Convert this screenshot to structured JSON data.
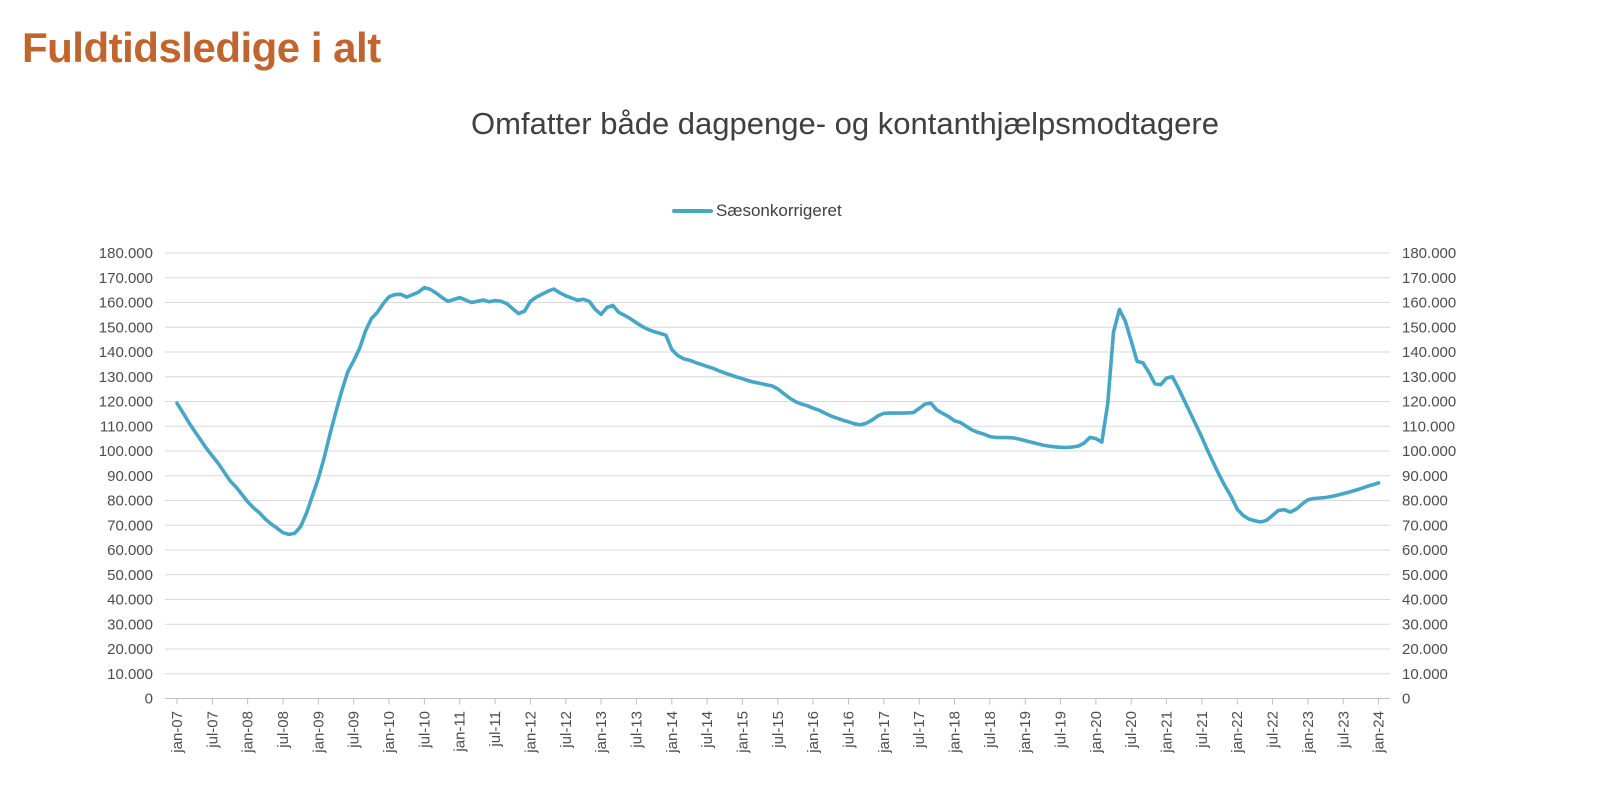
{
  "page": {
    "title": "Fuldtidsledige i alt",
    "title_color": "#C1652F",
    "background": "#FFFFFF"
  },
  "colors": {
    "gridline": "#D9D9D9",
    "axis_line": "#BFBFBF",
    "tick_label": "#4D4D4D",
    "subtitle_text": "#404040",
    "legend_text": "#404040",
    "series_line": "#46A6C5"
  },
  "chart_data": {
    "type": "line",
    "title": "Omfatter både dagpenge- og kontanthjælpsmodtagere",
    "legend": {
      "position": "top",
      "entries": [
        {
          "label": "Sæsonkorrigeret",
          "color": "#46A6C5"
        }
      ]
    },
    "grid": "horizontal",
    "ylim": [
      0,
      180000
    ],
    "y_gridline_step": 10000,
    "y_axis_sides": [
      "left",
      "right"
    ],
    "y_tick_labels": [
      "0",
      "10.000",
      "20.000",
      "30.000",
      "40.000",
      "50.000",
      "60.000",
      "70.000",
      "80.000",
      "90.000",
      "100.000",
      "110.000",
      "120.000",
      "130.000",
      "140.000",
      "150.000",
      "160.000",
      "170.000",
      "180.000"
    ],
    "x_unit": "month",
    "x_range": [
      "jan-07",
      "jan-24"
    ],
    "x_tick_labels": [
      "jan-07",
      "jul-07",
      "jan-08",
      "jul-08",
      "jan-09",
      "jul-09",
      "jan-10",
      "jul-10",
      "jan-11",
      "jul-11",
      "jan-12",
      "jul-12",
      "jan-13",
      "jul-13",
      "jan-14",
      "jul-14",
      "jan-15",
      "jul-15",
      "jan-16",
      "jul-16",
      "jan-17",
      "jul-17",
      "jan-18",
      "jul-18",
      "jan-19",
      "jul-19",
      "jan-20",
      "jul-20",
      "jan-21",
      "jul-21",
      "jan-22",
      "jul-22",
      "jan-23",
      "jul-23",
      "jan-24"
    ],
    "series": [
      {
        "name": "Sæsonkorrigeret",
        "color": "#46A6C5",
        "start": "jan-07",
        "frequency": "monthly",
        "values": [
          119300,
          115500,
          111500,
          108000,
          104500,
          101000,
          98000,
          95000,
          91500,
          88000,
          85500,
          82500,
          79500,
          77000,
          75000,
          72500,
          70500,
          68800,
          67000,
          66300,
          66800,
          69500,
          75000,
          82000,
          89000,
          97500,
          107000,
          116000,
          124500,
          132000,
          136500,
          141500,
          148500,
          153500,
          156000,
          159500,
          162300,
          163200,
          163300,
          162200,
          163200,
          164200,
          166000,
          165300,
          163800,
          162000,
          160500,
          161200,
          162000,
          161000,
          160000,
          160500,
          161000,
          160300,
          160800,
          160500,
          159500,
          157500,
          155500,
          156500,
          160500,
          162200,
          163400,
          164600,
          165400,
          163900,
          162700,
          161800,
          160900,
          161300,
          160500,
          157200,
          155200,
          158000,
          158800,
          156000,
          154800,
          153400,
          151800,
          150300,
          149100,
          148200,
          147500,
          146800,
          141000,
          138600,
          137300,
          136700,
          135800,
          135000,
          134200,
          133400,
          132400,
          131500,
          130700,
          129900,
          129200,
          128400,
          127800,
          127300,
          126800,
          126300,
          125100,
          123200,
          121400,
          119900,
          119000,
          118300,
          117300,
          116500,
          115300,
          114200,
          113300,
          112500,
          111800,
          111000,
          110600,
          111200,
          112500,
          114200,
          115200,
          115300,
          115300,
          115300,
          115400,
          115500,
          117200,
          119000,
          119300,
          116600,
          115200,
          113900,
          112200,
          111500,
          110000,
          108500,
          107500,
          106800,
          105800,
          105500,
          105400,
          105400,
          105300,
          104800,
          104200,
          103600,
          103000,
          102400,
          102000,
          101700,
          101500,
          101400,
          101600,
          102000,
          103200,
          105500,
          105000,
          103600,
          119000,
          148000,
          157200,
          152500,
          144500,
          136200,
          135600,
          131800,
          127200,
          126800,
          129500,
          130000,
          125500,
          120500,
          115500,
          110500,
          105500,
          100000,
          95000,
          90000,
          85500,
          81500,
          76500,
          74000,
          72500,
          71800,
          71300,
          72000,
          74000,
          76000,
          76300,
          75300,
          76500,
          78500,
          80300,
          80800,
          81000,
          81200,
          81600,
          82200,
          82800,
          83400,
          84100,
          84800,
          85600,
          86400,
          87100
        ]
      }
    ]
  }
}
